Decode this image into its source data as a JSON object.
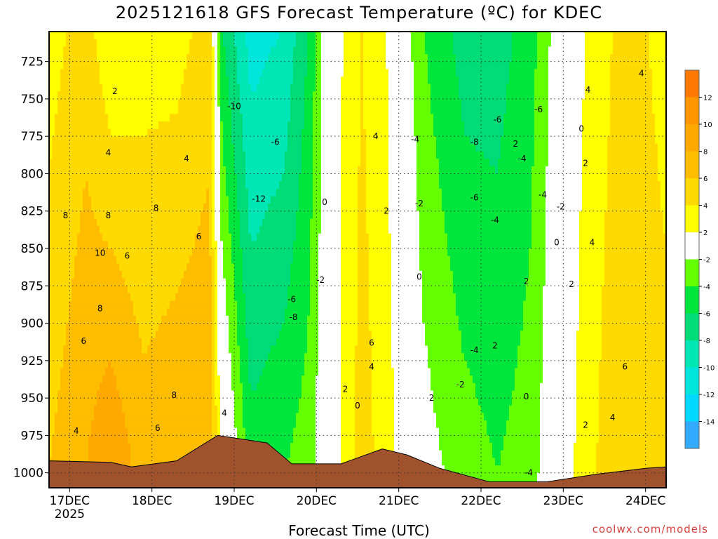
{
  "header": {
    "title": "2025121618 GFS Forecast Temperature (ºC) for KDEC"
  },
  "footer": {
    "credit": "coolwx.com/models"
  },
  "chart_data": {
    "type": "heatmap",
    "title": "2025121618 GFS Forecast Temperature (ºC) for KDEC",
    "xlabel": "Forecast Time (UTC)",
    "ylabel": "",
    "x_ticks": [
      {
        "label": "17DEC",
        "sublabel": "2025",
        "day": 0
      },
      {
        "label": "18DEC",
        "sublabel": "",
        "day": 1
      },
      {
        "label": "19DEC",
        "sublabel": "",
        "day": 2
      },
      {
        "label": "20DEC",
        "sublabel": "",
        "day": 3
      },
      {
        "label": "21DEC",
        "sublabel": "",
        "day": 4
      },
      {
        "label": "22DEC",
        "sublabel": "",
        "day": 5
      },
      {
        "label": "23DEC",
        "sublabel": "",
        "day": 6
      },
      {
        "label": "24DEC",
        "sublabel": "",
        "day": 7
      }
    ],
    "xlim_days": [
      -0.25,
      7.25
    ],
    "y_ticks": [
      "725",
      "750",
      "775",
      "800",
      "825",
      "850",
      "875",
      "900",
      "925",
      "950",
      "975",
      "1000"
    ],
    "ylim": [
      1010,
      705
    ],
    "y_inverted": true,
    "colorbar": {
      "labels": [
        "12",
        "10",
        "8",
        "6",
        "4",
        "2",
        "-2",
        "-4",
        "-6",
        "-8",
        "-10",
        "-12",
        "-14"
      ],
      "colors": [
        "#ff7800",
        "#ff9600",
        "#ffa800",
        "#ffbd00",
        "#ffda00",
        "#ffff00",
        "#ffffff",
        "#64ff00",
        "#00e63c",
        "#00dc78",
        "#00e6b4",
        "#00e6dc",
        "#00d8ff",
        "#32aaff"
      ]
    },
    "temperature_profiles": [
      {
        "day": -0.25,
        "t1000": 6,
        "t700": 3
      },
      {
        "day": 0.2,
        "t1000": 8,
        "t700": 5
      },
      {
        "day": 0.5,
        "t1000": 10,
        "t700": 2
      },
      {
        "day": 0.9,
        "t1000": 7,
        "t700": 3
      },
      {
        "day": 1.3,
        "t1000": 8,
        "t700": 3
      },
      {
        "day": 1.7,
        "t1000": 8,
        "t700": 5
      },
      {
        "day": 1.85,
        "t1000": 2,
        "t700": -6
      },
      {
        "day": 2.2,
        "t1000": -5,
        "t700": -11
      },
      {
        "day": 2.6,
        "t1000": -4,
        "t700": -10
      },
      {
        "day": 2.9,
        "t1000": -3,
        "t700": -6
      },
      {
        "day": 3.2,
        "t1000": 1,
        "t700": 1
      },
      {
        "day": 3.55,
        "t1000": 5,
        "t700": 4
      },
      {
        "day": 3.85,
        "t1000": 3,
        "t700": 2
      },
      {
        "day": 4.3,
        "t1000": -1,
        "t700": -4
      },
      {
        "day": 4.8,
        "t1000": -3,
        "t700": -7
      },
      {
        "day": 5.2,
        "t1000": -4,
        "t700": -7
      },
      {
        "day": 5.6,
        "t1000": -3,
        "t700": -5
      },
      {
        "day": 6.0,
        "t1000": 1,
        "t700": 0
      },
      {
        "day": 6.4,
        "t1000": 4,
        "t700": 3
      },
      {
        "day": 6.8,
        "t1000": 6,
        "t700": 5
      },
      {
        "day": 7.25,
        "t1000": 5,
        "t700": 3
      }
    ],
    "surface_pressure": [
      {
        "day": -0.25,
        "p": 992
      },
      {
        "day": 0.5,
        "p": 993
      },
      {
        "day": 0.75,
        "p": 996
      },
      {
        "day": 1.3,
        "p": 992
      },
      {
        "day": 1.8,
        "p": 975
      },
      {
        "day": 2.4,
        "p": 980
      },
      {
        "day": 2.7,
        "p": 994
      },
      {
        "day": 3.3,
        "p": 994
      },
      {
        "day": 3.8,
        "p": 984
      },
      {
        "day": 4.1,
        "p": 988
      },
      {
        "day": 4.5,
        "p": 997
      },
      {
        "day": 5.1,
        "p": 1006
      },
      {
        "day": 5.8,
        "p": 1006
      },
      {
        "day": 6.4,
        "p": 1001
      },
      {
        "day": 7.0,
        "p": 997
      },
      {
        "day": 7.25,
        "p": 996
      }
    ],
    "contour_labels": [
      {
        "text": "2",
        "day": 0.55,
        "p": 745
      },
      {
        "text": "4",
        "day": 0.47,
        "p": 786
      },
      {
        "text": "4",
        "day": 1.42,
        "p": 790
      },
      {
        "text": "8",
        "day": -0.05,
        "p": 828
      },
      {
        "text": "8",
        "day": 0.47,
        "p": 828
      },
      {
        "text": "8",
        "day": 1.05,
        "p": 823
      },
      {
        "text": "6",
        "day": 1.57,
        "p": 842
      },
      {
        "text": "10",
        "day": 0.37,
        "p": 853
      },
      {
        "text": "6",
        "day": 0.7,
        "p": 855
      },
      {
        "text": "8",
        "day": 0.37,
        "p": 890
      },
      {
        "text": "6",
        "day": 0.17,
        "p": 912
      },
      {
        "text": "8",
        "day": 1.27,
        "p": 948
      },
      {
        "text": "4",
        "day": 0.08,
        "p": 972
      },
      {
        "text": "6",
        "day": 1.07,
        "p": 970
      },
      {
        "text": "4",
        "day": 1.88,
        "p": 960
      },
      {
        "text": "-10",
        "day": 2.0,
        "p": 755
      },
      {
        "text": "-6",
        "day": 2.5,
        "p": 779
      },
      {
        "text": "-12",
        "day": 2.3,
        "p": 817
      },
      {
        "text": "-6",
        "day": 2.7,
        "p": 884
      },
      {
        "text": "-8",
        "day": 2.72,
        "p": 896
      },
      {
        "text": "0",
        "day": 3.1,
        "p": 819
      },
      {
        "text": "-2",
        "day": 3.05,
        "p": 871
      },
      {
        "text": "4",
        "day": 3.72,
        "p": 775
      },
      {
        "text": "2",
        "day": 3.85,
        "p": 825
      },
      {
        "text": "6",
        "day": 3.67,
        "p": 913
      },
      {
        "text": "4",
        "day": 3.67,
        "p": 929
      },
      {
        "text": "2",
        "day": 3.35,
        "p": 944
      },
      {
        "text": "0",
        "day": 3.5,
        "p": 955
      },
      {
        "text": "-4",
        "day": 4.2,
        "p": 777
      },
      {
        "text": "-2",
        "day": 4.25,
        "p": 820
      },
      {
        "text": "0",
        "day": 4.25,
        "p": 869
      },
      {
        "text": "2",
        "day": 4.4,
        "p": 950
      },
      {
        "text": "-8",
        "day": 4.92,
        "p": 779
      },
      {
        "text": "-6",
        "day": 4.92,
        "p": 816
      },
      {
        "text": "-4",
        "day": 5.17,
        "p": 831
      },
      {
        "text": "-4",
        "day": 4.92,
        "p": 918
      },
      {
        "text": "2",
        "day": 5.17,
        "p": 915
      },
      {
        "text": "-2",
        "day": 4.75,
        "p": 941
      },
      {
        "text": "-6",
        "day": 5.2,
        "p": 764
      },
      {
        "text": "2",
        "day": 5.42,
        "p": 780
      },
      {
        "text": "-4",
        "day": 5.5,
        "p": 790
      },
      {
        "text": "-6",
        "day": 5.7,
        "p": 757
      },
      {
        "text": "-4",
        "day": 5.75,
        "p": 814
      },
      {
        "text": "-2",
        "day": 5.97,
        "p": 822
      },
      {
        "text": "2",
        "day": 5.55,
        "p": 872
      },
      {
        "text": "0",
        "day": 5.92,
        "p": 846
      },
      {
        "text": "2",
        "day": 6.1,
        "p": 874
      },
      {
        "text": "0",
        "day": 5.55,
        "p": 949
      },
      {
        "text": "-4",
        "day": 5.58,
        "p": 1000
      },
      {
        "text": "4",
        "day": 6.3,
        "p": 744
      },
      {
        "text": "0",
        "day": 6.22,
        "p": 770
      },
      {
        "text": "2",
        "day": 6.27,
        "p": 793
      },
      {
        "text": "4",
        "day": 6.35,
        "p": 846
      },
      {
        "text": "2",
        "day": 6.27,
        "p": 968
      },
      {
        "text": "4",
        "day": 6.6,
        "p": 963
      },
      {
        "text": "6",
        "day": 6.75,
        "p": 929
      },
      {
        "text": "4",
        "day": 6.95,
        "p": 733
      }
    ]
  }
}
